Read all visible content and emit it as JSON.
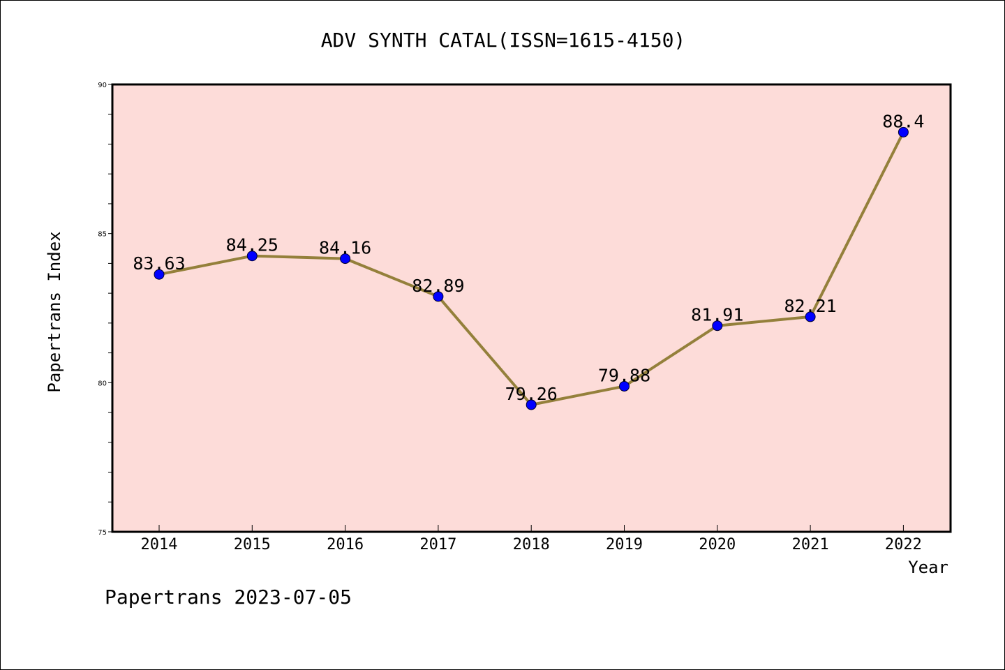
{
  "colors": {
    "plot_background": "#fddcd9",
    "line": "#94803b",
    "marker": "#0000ff",
    "frame": "#000000"
  },
  "footer": {
    "text": "Papertrans 2023-07-05"
  },
  "chart_data": {
    "type": "line",
    "title": "ADV SYNTH CATAL(ISSN=1615-4150)",
    "xlabel": "Year",
    "ylabel": "Papertrans Index",
    "categories": [
      "2014",
      "2015",
      "2016",
      "2017",
      "2018",
      "2019",
      "2020",
      "2021",
      "2022"
    ],
    "series": [
      {
        "values": [
          83.63,
          84.25,
          84.16,
          82.89,
          79.26,
          79.88,
          81.91,
          82.21,
          88.4
        ],
        "labels": [
          "83.63",
          "84.25",
          "84.16",
          "82.89",
          "79.26",
          "79.88",
          "81.91",
          "82.21",
          "88.4"
        ]
      }
    ],
    "ylim": [
      75,
      90
    ],
    "yticks": [
      "75",
      "80",
      "85",
      "90"
    ],
    "grid": false,
    "legend": "none"
  }
}
